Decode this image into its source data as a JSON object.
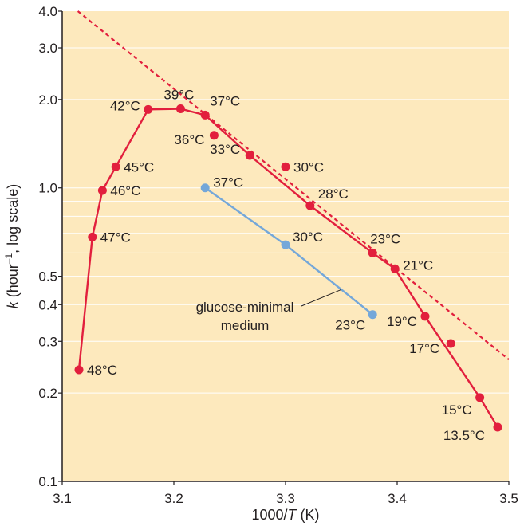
{
  "chart_data": {
    "type": "line",
    "title": "",
    "xlabel": {
      "prefix": "1000/",
      "var": "T",
      "suffix": " (K)"
    },
    "ylabel": {
      "var": "k",
      "prefix": " (hour",
      "sup": "–1",
      "suffix": ", log scale)"
    },
    "xlim": [
      3.1,
      3.5
    ],
    "ylim": [
      0.1,
      4.0
    ],
    "yscale": "log",
    "grid": true,
    "legend": "none",
    "x_ticks": [
      {
        "value": 3.1,
        "label": "3.1"
      },
      {
        "value": 3.2,
        "label": "3.2"
      },
      {
        "value": 3.3,
        "label": "3.3"
      },
      {
        "value": 3.4,
        "label": "3.4"
      },
      {
        "value": 3.5,
        "label": "3.5"
      }
    ],
    "y_ticks": [
      {
        "value": 0.1,
        "label": "0.1"
      },
      {
        "value": 0.2,
        "label": "0.2"
      },
      {
        "value": 0.3,
        "label": "0.3"
      },
      {
        "value": 0.4,
        "label": "0.4"
      },
      {
        "value": 0.5,
        "label": "0.5"
      },
      {
        "value": 1.0,
        "label": "1.0"
      },
      {
        "value": 2.0,
        "label": "2.0"
      },
      {
        "value": 3.0,
        "label": "3.0"
      },
      {
        "value": 4.0,
        "label": "4.0"
      }
    ],
    "grid_values": [
      0.6,
      0.7,
      0.8,
      0.9
    ],
    "colors": {
      "background": "#fde9bd",
      "rich": "#e21f3d",
      "minimal": "#74a7d9",
      "grid": "#ffffff",
      "axis": "#231f20"
    },
    "series": [
      {
        "key": "rich",
        "points": [
          {
            "x": 3.115,
            "y": 0.24,
            "label": "48°C"
          },
          {
            "x": 3.127,
            "y": 0.68,
            "label": "47°C"
          },
          {
            "x": 3.136,
            "y": 0.98,
            "label": "46°C"
          },
          {
            "x": 3.148,
            "y": 1.18,
            "label": "45°C"
          },
          {
            "x": 3.177,
            "y": 1.85,
            "label": "42°C"
          },
          {
            "x": 3.206,
            "y": 1.86,
            "label": "39°C"
          },
          {
            "x": 3.228,
            "y": 1.77,
            "label": "37°C"
          },
          {
            "x": 3.268,
            "y": 1.29,
            "label": "33°C"
          },
          {
            "x": 3.322,
            "y": 0.87,
            "label": "28°C"
          },
          {
            "x": 3.378,
            "y": 0.6,
            "label": "23°C"
          },
          {
            "x": 3.398,
            "y": 0.53,
            "label": "21°C"
          },
          {
            "x": 3.425,
            "y": 0.365,
            "label": "19°C"
          },
          {
            "x": 3.474,
            "y": 0.193,
            "label": "15°C"
          },
          {
            "x": 3.49,
            "y": 0.153,
            "label": "13.5°C"
          }
        ]
      },
      {
        "key": "rich_outliers",
        "points": [
          {
            "x": 3.236,
            "y": 1.51,
            "label": "36°C"
          },
          {
            "x": 3.3,
            "y": 1.18,
            "label": "30°C"
          },
          {
            "x": 3.448,
            "y": 0.295,
            "label": "17°C"
          }
        ]
      },
      {
        "key": "minimal",
        "points": [
          {
            "x": 3.228,
            "y": 1.0,
            "label": "37°C"
          },
          {
            "x": 3.3,
            "y": 0.64,
            "label": "30°C"
          },
          {
            "x": 3.378,
            "y": 0.37,
            "label": "23°C"
          }
        ]
      }
    ],
    "extrapolation": {
      "x": [
        3.114,
        3.5
      ],
      "y": [
        4.0,
        0.26
      ]
    },
    "annotation": {
      "lines": [
        "glucose-minimal",
        "medium"
      ],
      "points_to_x": 3.35
    }
  }
}
